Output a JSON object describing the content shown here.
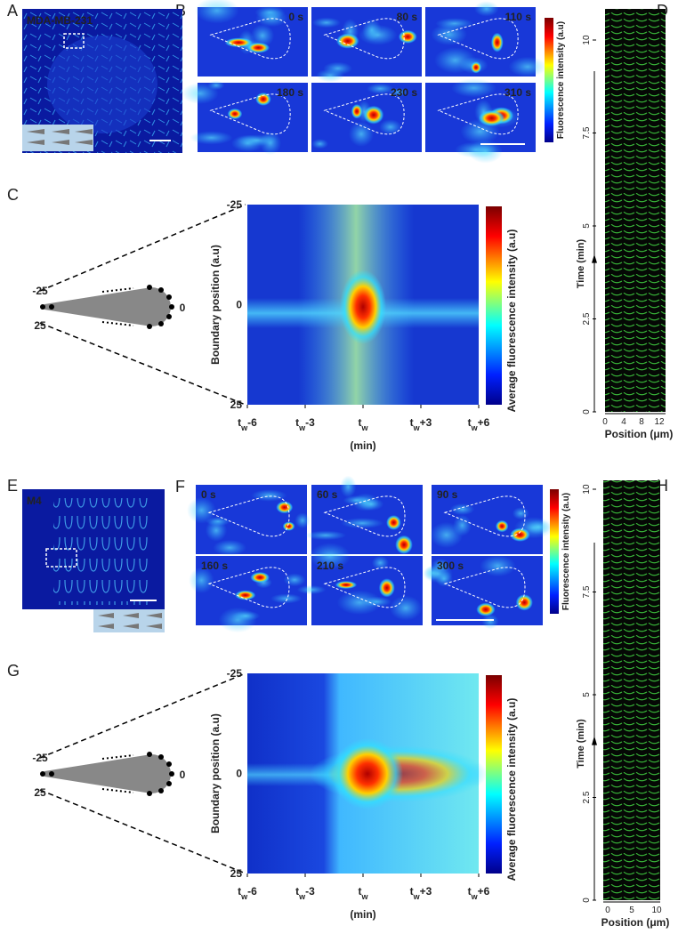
{
  "A": {
    "letter": "A",
    "label": "MDA-MB-231"
  },
  "B": {
    "letter": "B",
    "times": [
      "0 s",
      "80 s",
      "110 s",
      "180 s",
      "230 s",
      "310 s"
    ],
    "colorbar_label": "Fluorescence intensity (a.u)"
  },
  "C": {
    "letter": "C",
    "diagram_labels": [
      "-25",
      "0",
      "25"
    ],
    "y_label": "Boundary  position (a.u)",
    "y_ticks": [
      "-25",
      "0",
      "25"
    ],
    "x_ticks": [
      [
        "t",
        "w",
        "-6"
      ],
      [
        "t",
        "w",
        "-3"
      ],
      [
        "t",
        "w"
      ],
      [
        "t",
        "w",
        "+3"
      ],
      [
        "t",
        "w",
        "+6"
      ]
    ],
    "x_label": "(min)",
    "colorbar_label": "Average fluorescence intensity (a.u)"
  },
  "D": {
    "letter": "D",
    "y_label": "Time (min)",
    "y_ticks": [
      "0",
      "2.5",
      "5",
      "7.5",
      "10"
    ],
    "x_ticks": [
      "0",
      "4",
      "8",
      "12"
    ],
    "x_label": "Position (μm)"
  },
  "E": {
    "letter": "E",
    "label": "M4"
  },
  "F": {
    "letter": "F",
    "times": [
      "0 s",
      "60 s",
      "90 s",
      "160 s",
      "210 s",
      "300 s"
    ],
    "colorbar_label": "Fluorescence  intensity (a.u)"
  },
  "G": {
    "letter": "G",
    "diagram_labels": [
      "-25",
      "0",
      "25"
    ],
    "y_label": "Boundary position (a.u)",
    "y_ticks": [
      "-25",
      "0",
      "25"
    ],
    "x_ticks": [
      [
        "t",
        "w",
        "-6"
      ],
      [
        "t",
        "w",
        "-3"
      ],
      [
        "t",
        "w"
      ],
      [
        "t",
        "w",
        "+3"
      ],
      [
        "t",
        "w",
        "+6"
      ]
    ],
    "x_label": "(min)",
    "colorbar_label": "Average fluorescence intensity (a.u)"
  },
  "H": {
    "letter": "H",
    "y_label": "Time (min)",
    "y_ticks": [
      "0",
      "2.5",
      "5",
      "7.5",
      "10"
    ],
    "x_ticks": [
      "0",
      "5",
      "10"
    ],
    "x_label": "Position (μm)"
  }
}
